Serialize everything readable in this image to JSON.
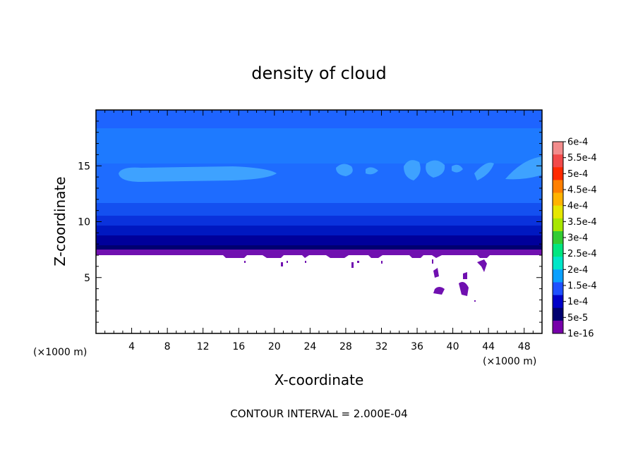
{
  "chart_data": {
    "type": "heatmap",
    "title": "density of cloud",
    "xlabel": "X-coordinate",
    "ylabel": "Z-coordinate",
    "x_unit": "(×1000 m)",
    "y_unit": "(×1000 m)",
    "xlim": [
      0,
      50
    ],
    "ylim": [
      0,
      20
    ],
    "x_ticks": [
      "4",
      "8",
      "12",
      "16",
      "20",
      "24",
      "28",
      "32",
      "36",
      "40",
      "44",
      "48"
    ],
    "y_ticks": [
      "5",
      "10",
      "15"
    ],
    "footer": "CONTOUR INTERVAL = 2.000E-04",
    "colorbar": {
      "labels": [
        "6e-4",
        "5.5e-4",
        "5e-4",
        "4.5e-4",
        "4e-4",
        "3.5e-4",
        "3e-4",
        "2.5e-4",
        "2e-4",
        "1.5e-4",
        "1e-4",
        "5e-5",
        "1e-16"
      ],
      "colors": [
        "#f28c8c",
        "#f24a4a",
        "#ff2a00",
        "#ff7f00",
        "#ffb300",
        "#e6e600",
        "#a8e600",
        "#33cc33",
        "#00e680",
        "#00e6c8",
        "#0aa0ff",
        "#1e50ff",
        "#0000c8",
        "#000070",
        "#7700aa"
      ]
    },
    "layers": [
      {
        "z_range": [
          18.5,
          20
        ],
        "value_range": [
          5e-05,
          0.0001
        ],
        "color": "#1e64ff"
      },
      {
        "z_range": [
          11,
          18.5
        ],
        "value_range": [
          0.0001,
          0.00015
        ],
        "color": "#1e7fff"
      },
      {
        "z_range": [
          8.5,
          11
        ],
        "value_range": [
          5e-05,
          0.0001
        ],
        "color": "#0a28d8"
      },
      {
        "z_range": [
          7.5,
          8.5
        ],
        "value_range": [
          1e-16,
          5e-05
        ],
        "color": "#00008c"
      },
      {
        "z_range": [
          7,
          7.5
        ],
        "value_range": [
          0,
          1e-16
        ],
        "color": "#7010b0"
      }
    ]
  }
}
